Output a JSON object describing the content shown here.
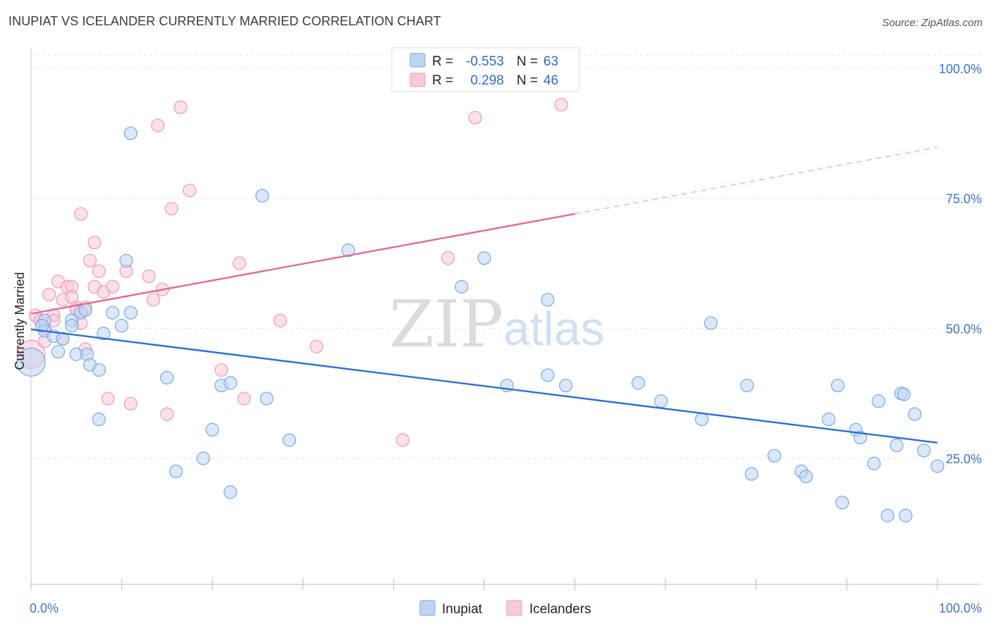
{
  "header": {
    "title": "INUPIAT VS ICELANDER CURRENTLY MARRIED CORRELATION CHART",
    "source": "Source: ZipAtlas.com"
  },
  "colors": {
    "inupiat_fill": "#bcd5f5",
    "inupiat_stroke": "#7aa8e0",
    "inupiat_line": "#2a6fd1",
    "icelander_fill": "#f9c9d8",
    "icelander_stroke": "#eb9bb5",
    "icelander_line": "#e06b93",
    "grid": "#e2e2e2",
    "axis_text": "#3b74c7"
  },
  "legend": {
    "rows": [
      {
        "r_label": "R =",
        "r_value": "-0.553",
        "n_label": "N =",
        "n_value": "63"
      },
      {
        "r_label": "R =",
        "r_value": "0.298",
        "n_label": "N =",
        "n_value": "46"
      }
    ]
  },
  "bottom_legend": [
    "Inupiat",
    "Icelanders"
  ],
  "watermark": {
    "zip": "ZIP",
    "atlas": "atlas"
  },
  "chart_data": {
    "type": "scatter",
    "title": "INUPIAT VS ICELANDER CURRENTLY MARRIED CORRELATION CHART",
    "xlabel": "",
    "ylabel": "Currently Married",
    "xlim": [
      0,
      100
    ],
    "ylim": [
      0,
      105
    ],
    "x_tick_labels": [
      "0.0%",
      "100.0%"
    ],
    "y_tick_labels": [
      "100.0%",
      "75.0%",
      "50.0%",
      "25.0%"
    ],
    "y_ticks": [
      100,
      75,
      50,
      25
    ],
    "grid": true,
    "legend_position": "top-center",
    "series": [
      {
        "name": "Inupiat",
        "r": -0.553,
        "n": 63,
        "trend": {
          "x": [
            0,
            100
          ],
          "y": [
            49.8,
            28.0
          ],
          "solid_until": 100
        },
        "points": [
          [
            0.0,
            43.5
          ],
          [
            1.5,
            51.5
          ],
          [
            1.5,
            49.5
          ],
          [
            2.5,
            48.5
          ],
          [
            3.0,
            45.5
          ],
          [
            3.5,
            48.0
          ],
          [
            4.5,
            51.5
          ],
          [
            4.5,
            50.5
          ],
          [
            5.0,
            45.0
          ],
          [
            5.5,
            53.0
          ],
          [
            6.0,
            53.5
          ],
          [
            6.2,
            45.0
          ],
          [
            6.5,
            43.0
          ],
          [
            7.5,
            42.0
          ],
          [
            7.5,
            32.5
          ],
          [
            8.0,
            49.0
          ],
          [
            9.0,
            53.0
          ],
          [
            10.0,
            50.5
          ],
          [
            10.5,
            63.0
          ],
          [
            11.0,
            53.0
          ],
          [
            11.0,
            87.5
          ],
          [
            15.0,
            40.5
          ],
          [
            16.0,
            22.5
          ],
          [
            19.0,
            25.0
          ],
          [
            20.0,
            30.5
          ],
          [
            21.0,
            39.0
          ],
          [
            22.0,
            39.5
          ],
          [
            22.0,
            18.5
          ],
          [
            25.5,
            75.5
          ],
          [
            26.0,
            36.5
          ],
          [
            28.5,
            28.5
          ],
          [
            35.0,
            65.0
          ],
          [
            47.5,
            58.0
          ],
          [
            50.0,
            63.5
          ],
          [
            52.5,
            39.0
          ],
          [
            57.0,
            55.5
          ],
          [
            57.0,
            41.0
          ],
          [
            59.0,
            39.0
          ],
          [
            67.0,
            39.5
          ],
          [
            69.5,
            36.0
          ],
          [
            74.0,
            32.5
          ],
          [
            75.0,
            51.0
          ],
          [
            79.0,
            39.0
          ],
          [
            82.0,
            25.5
          ],
          [
            79.5,
            22.0
          ],
          [
            85.0,
            22.5
          ],
          [
            85.5,
            21.5
          ],
          [
            88.0,
            32.5
          ],
          [
            89.5,
            16.5
          ],
          [
            89.0,
            39.0
          ],
          [
            91.0,
            30.5
          ],
          [
            91.5,
            29.0
          ],
          [
            93.0,
            24.0
          ],
          [
            93.5,
            36.0
          ],
          [
            94.5,
            14.0
          ],
          [
            95.5,
            27.5
          ],
          [
            96.0,
            37.5
          ],
          [
            96.3,
            37.3
          ],
          [
            96.5,
            14.0
          ],
          [
            97.5,
            33.5
          ],
          [
            98.5,
            26.5
          ],
          [
            100.0,
            23.5
          ],
          [
            1.2,
            50.5
          ]
        ]
      },
      {
        "name": "Icelanders",
        "r": 0.298,
        "n": 46,
        "trend": {
          "x": [
            0,
            100
          ],
          "y": [
            52.8,
            84.8
          ],
          "solid_until": 60
        },
        "points": [
          [
            0.0,
            45.0
          ],
          [
            0.5,
            52.5
          ],
          [
            1.0,
            51.5
          ],
          [
            1.5,
            50.0
          ],
          [
            2.0,
            56.5
          ],
          [
            2.5,
            52.5
          ],
          [
            2.5,
            51.5
          ],
          [
            3.0,
            59.0
          ],
          [
            3.5,
            55.5
          ],
          [
            3.5,
            48.0
          ],
          [
            4.0,
            58.0
          ],
          [
            4.5,
            58.0
          ],
          [
            4.5,
            56.0
          ],
          [
            5.0,
            54.0
          ],
          [
            5.0,
            53.5
          ],
          [
            5.5,
            51.0
          ],
          [
            5.5,
            72.0
          ],
          [
            6.0,
            54.0
          ],
          [
            6.0,
            46.0
          ],
          [
            6.5,
            63.0
          ],
          [
            7.0,
            66.5
          ],
          [
            7.0,
            58.0
          ],
          [
            7.5,
            61.0
          ],
          [
            8.0,
            57.0
          ],
          [
            8.5,
            36.5
          ],
          [
            9.0,
            58.0
          ],
          [
            10.5,
            61.0
          ],
          [
            11.0,
            35.5
          ],
          [
            13.0,
            60.0
          ],
          [
            13.5,
            55.5
          ],
          [
            14.0,
            89.0
          ],
          [
            14.5,
            57.5
          ],
          [
            15.0,
            33.5
          ],
          [
            15.5,
            73.0
          ],
          [
            16.5,
            92.5
          ],
          [
            17.5,
            76.5
          ],
          [
            21.0,
            42.0
          ],
          [
            23.0,
            62.5
          ],
          [
            23.5,
            36.5
          ],
          [
            27.5,
            51.5
          ],
          [
            31.5,
            46.5
          ],
          [
            41.0,
            28.5
          ],
          [
            46.0,
            63.5
          ],
          [
            49.0,
            90.5
          ],
          [
            58.5,
            93.0
          ],
          [
            1.5,
            47.5
          ]
        ]
      }
    ]
  }
}
